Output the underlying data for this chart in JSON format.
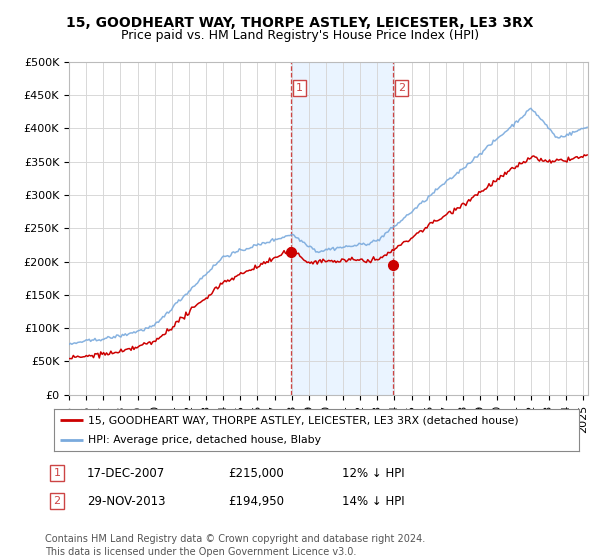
{
  "title": "15, GOODHEART WAY, THORPE ASTLEY, LEICESTER, LE3 3RX",
  "subtitle": "Price paid vs. HM Land Registry's House Price Index (HPI)",
  "ylabel_ticks": [
    "£0",
    "£50K",
    "£100K",
    "£150K",
    "£200K",
    "£250K",
    "£300K",
    "£350K",
    "£400K",
    "£450K",
    "£500K"
  ],
  "ytick_values": [
    0,
    50000,
    100000,
    150000,
    200000,
    250000,
    300000,
    350000,
    400000,
    450000,
    500000
  ],
  "ylim": [
    0,
    500000
  ],
  "xlim_start": 1995.0,
  "xlim_end": 2025.3,
  "background_color": "#ffffff",
  "plot_bg_color": "#ffffff",
  "grid_color": "#d8d8d8",
  "hpi_color": "#7aaadd",
  "price_color": "#cc0000",
  "sale1_x": 2007.96,
  "sale1_y": 215000,
  "sale2_x": 2013.91,
  "sale2_y": 194950,
  "marker_color": "#cc0000",
  "vline_color": "#cc4444",
  "shade_color": "#ddeeff",
  "legend_label1": "15, GOODHEART WAY, THORPE ASTLEY, LEICESTER, LE3 3RX (detached house)",
  "legend_label2": "HPI: Average price, detached house, Blaby",
  "annotation1_label": "1",
  "annotation1_date": "17-DEC-2007",
  "annotation1_price": "£215,000",
  "annotation1_hpi": "12% ↓ HPI",
  "annotation2_label": "2",
  "annotation2_date": "29-NOV-2013",
  "annotation2_price": "£194,950",
  "annotation2_hpi": "14% ↓ HPI",
  "footer": "Contains HM Land Registry data © Crown copyright and database right 2024.\nThis data is licensed under the Open Government Licence v3.0.",
  "title_fontsize": 10,
  "subtitle_fontsize": 9,
  "tick_fontsize": 8,
  "footer_fontsize": 7
}
